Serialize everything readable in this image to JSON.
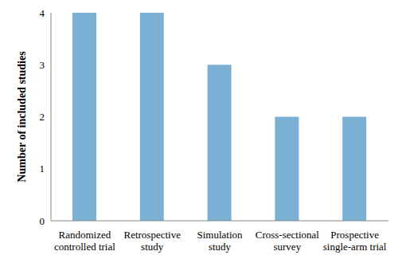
{
  "chart_data": {
    "type": "bar",
    "y_label": "Number of included studies",
    "categories": [
      "Randomized controlled trial",
      "Retrospective study",
      "Simulation study",
      "Cross-sectional survey",
      "Prospective single-arm trial"
    ],
    "values": [
      4,
      4,
      3,
      2,
      2
    ],
    "color": "#7bafd4",
    "ylim": [
      0,
      4
    ],
    "yticks": [
      0,
      1,
      2,
      3,
      4
    ],
    "grid": false
  }
}
